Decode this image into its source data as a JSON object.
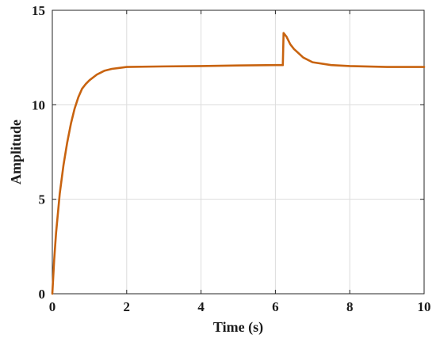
{
  "chart_data": {
    "type": "line",
    "title": "",
    "xlabel": "Time (s)",
    "ylabel": "Amplitude",
    "xlim": [
      0,
      10
    ],
    "ylim": [
      0,
      15
    ],
    "grid": true,
    "x_ticks": [
      0,
      2,
      4,
      6,
      8,
      10
    ],
    "y_ticks": [
      0,
      5,
      10,
      15
    ],
    "x_tick_labels": [
      "0",
      "2",
      "4",
      "6",
      "8",
      "10"
    ],
    "y_tick_labels": [
      "0",
      "5",
      "10",
      "15"
    ],
    "series": [
      {
        "color": "#c8630f",
        "x": [
          0,
          0.05,
          0.1,
          0.2,
          0.3,
          0.4,
          0.5,
          0.6,
          0.7,
          0.8,
          0.9,
          1.0,
          1.2,
          1.4,
          1.6,
          1.8,
          2.0,
          3.0,
          4.0,
          5.0,
          6.0,
          6.2,
          6.22,
          6.3,
          6.4,
          6.5,
          6.75,
          7.0,
          7.5,
          8.0,
          9.0,
          10.0
        ],
        "y": [
          0,
          1.8,
          3.2,
          5.3,
          6.8,
          8.0,
          9.0,
          9.8,
          10.4,
          10.85,
          11.1,
          11.3,
          11.6,
          11.8,
          11.9,
          11.95,
          12.0,
          12.03,
          12.05,
          12.08,
          12.1,
          12.1,
          13.8,
          13.6,
          13.2,
          12.95,
          12.5,
          12.25,
          12.1,
          12.05,
          12.0,
          12.0
        ]
      }
    ]
  }
}
